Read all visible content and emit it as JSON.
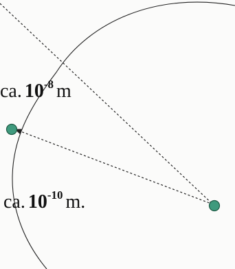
{
  "diagram": {
    "label_upper": {
      "prefix": "ca.",
      "base": "10",
      "exponent": "-8",
      "unit": "m"
    },
    "label_lower": {
      "prefix": "ca.",
      "base": "10",
      "exponent": "-10",
      "unit": "m."
    },
    "colors": {
      "particle_fill": "#3f9a7d",
      "particle_stroke": "#1f5a45",
      "line": "#222222",
      "text": "#111111"
    }
  }
}
